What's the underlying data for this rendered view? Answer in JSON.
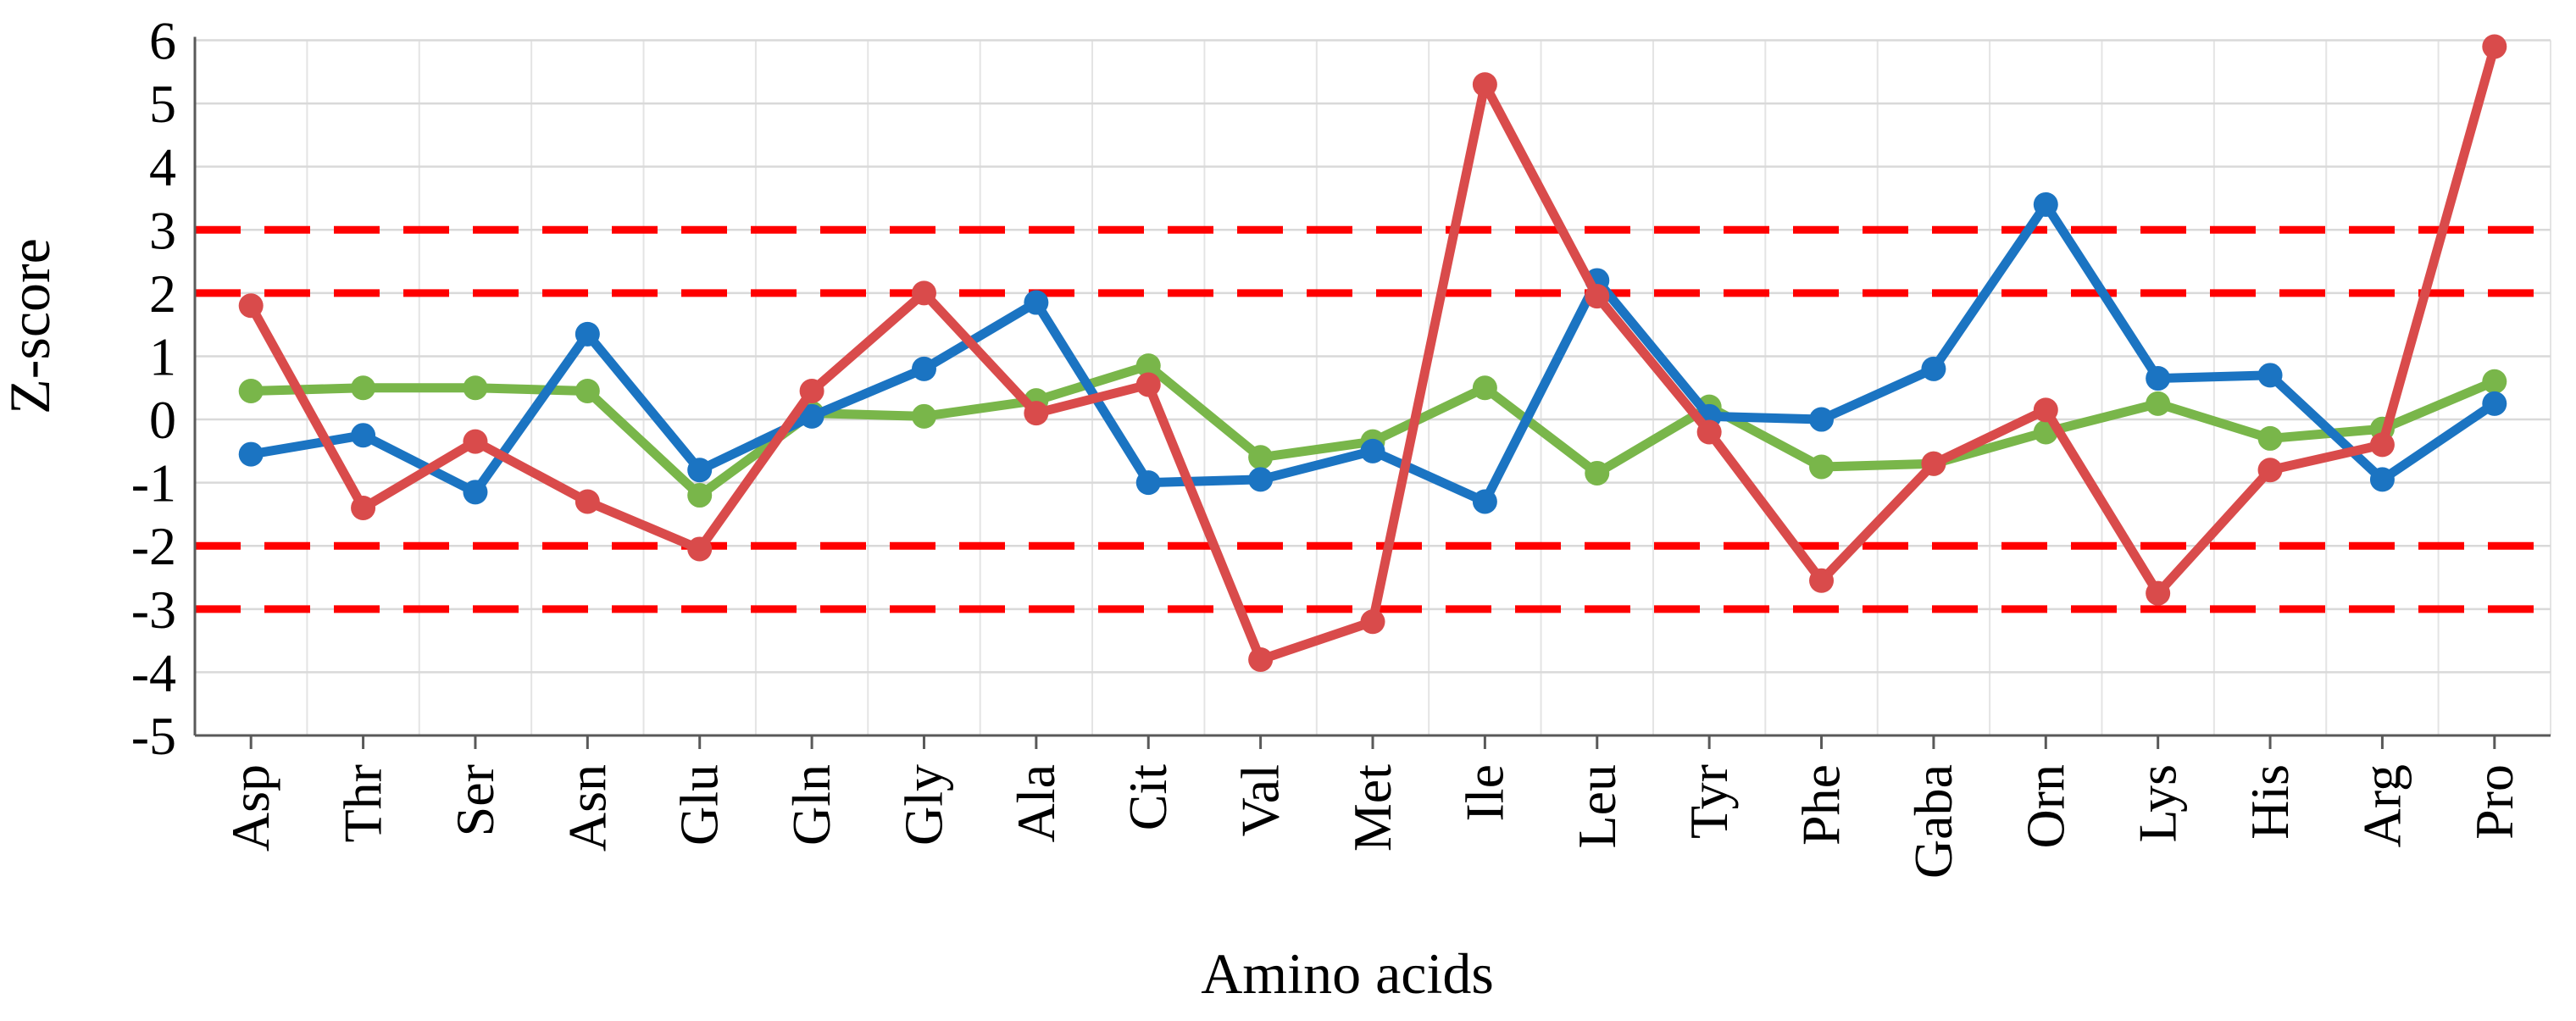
{
  "chart_data": {
    "type": "line",
    "title": "",
    "xlabel": "Amino acids",
    "ylabel": "Z-score",
    "categories": [
      "Asp",
      "Thr",
      "Ser",
      "Asn",
      "Glu",
      "Gln",
      "Gly",
      "Ala",
      "Cit",
      "Val",
      "Met",
      "Ile",
      "Leu",
      "Tyr",
      "Phe",
      "Gaba",
      "Orn",
      "Lys",
      "His",
      "Arg",
      "Pro"
    ],
    "series": [
      {
        "name": "green",
        "color": "#79B64A",
        "marker": "circle",
        "values": [
          0.45,
          0.5,
          0.5,
          0.45,
          -1.2,
          0.1,
          0.05,
          0.3,
          0.85,
          -0.6,
          -0.35,
          0.5,
          -0.85,
          0.2,
          -0.75,
          -0.7,
          -0.2,
          0.25,
          -0.3,
          -0.15,
          0.6
        ]
      },
      {
        "name": "blue",
        "color": "#1B74C2",
        "marker": "circle",
        "values": [
          -0.55,
          -0.25,
          -1.15,
          1.35,
          -0.8,
          0.05,
          0.8,
          1.85,
          -1.0,
          -0.95,
          -0.5,
          -1.3,
          2.2,
          0.05,
          0.0,
          0.8,
          3.4,
          0.65,
          0.7,
          -0.95,
          0.25
        ]
      },
      {
        "name": "red",
        "color": "#D94B4B",
        "marker": "circle",
        "values": [
          1.8,
          -1.4,
          -0.35,
          -1.3,
          -2.05,
          0.45,
          2.0,
          0.1,
          0.55,
          -3.8,
          -3.2,
          5.3,
          1.95,
          -0.2,
          -2.55,
          -0.7,
          0.15,
          -2.75,
          -0.8,
          -0.4,
          5.9
        ]
      }
    ],
    "reference_lines": {
      "values": [
        3,
        2,
        -2,
        -3
      ],
      "color": "#FF0000",
      "style": "dashed"
    },
    "ylim": [
      -5,
      6
    ],
    "ytick_labels": [
      "6",
      "5",
      "4",
      "3",
      "2",
      "1",
      "0",
      "-1",
      "-2",
      "-3",
      "-4",
      "-5"
    ],
    "grid": true,
    "legend": "none"
  },
  "colors": {
    "background": "#FFFFFF",
    "gridline_h": "#D9D9D9",
    "gridline_v": "#E4E4E4",
    "axis": "#595959",
    "reference": "#FF0000"
  }
}
